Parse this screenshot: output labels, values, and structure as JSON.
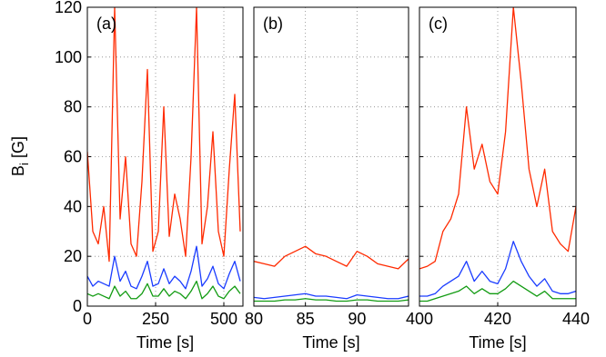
{
  "chart_data": [
    {
      "type": "line",
      "panel_label": "(a)",
      "xlabel": "Time [s]",
      "ylabel": "B",
      "ylabel_sub": "i",
      "ylabel_unit": "[G]",
      "xlim": [
        0,
        570
      ],
      "xticks": [
        0,
        250,
        500
      ],
      "ylim": [
        0,
        120
      ],
      "yticks": [
        0,
        20,
        40,
        60,
        80,
        100,
        120
      ],
      "grid": true,
      "x": [
        0,
        20,
        40,
        60,
        80,
        100,
        120,
        140,
        160,
        180,
        200,
        220,
        240,
        260,
        280,
        300,
        320,
        340,
        360,
        380,
        400,
        420,
        440,
        460,
        480,
        500,
        520,
        540,
        560
      ],
      "series": [
        {
          "color": "#ff2a00",
          "values": [
            62,
            30,
            25,
            40,
            18,
            120,
            35,
            60,
            25,
            20,
            50,
            95,
            22,
            30,
            80,
            28,
            45,
            35,
            20,
            60,
            120,
            25,
            40,
            70,
            30,
            20,
            55,
            85,
            30
          ]
        },
        {
          "color": "#1a3cff",
          "values": [
            12,
            8,
            10,
            9,
            8,
            20,
            10,
            14,
            8,
            7,
            12,
            18,
            8,
            9,
            15,
            9,
            12,
            10,
            7,
            14,
            24,
            8,
            11,
            16,
            9,
            7,
            13,
            18,
            10
          ]
        },
        {
          "color": "#129b12",
          "values": [
            5,
            4,
            5,
            4,
            3,
            8,
            4,
            6,
            3,
            3,
            5,
            9,
            4,
            4,
            7,
            4,
            6,
            5,
            3,
            6,
            10,
            3,
            5,
            8,
            4,
            3,
            6,
            8,
            5
          ]
        }
      ]
    },
    {
      "type": "line",
      "panel_label": "(b)",
      "xlabel": "Time [s]",
      "xlim": [
        80,
        95
      ],
      "xticks": [
        80,
        85,
        90
      ],
      "ylim": [
        0,
        120
      ],
      "grid": true,
      "x": [
        80,
        81,
        82,
        83,
        84,
        85,
        86,
        87,
        88,
        89,
        90,
        91,
        92,
        93,
        94,
        95
      ],
      "series": [
        {
          "color": "#ff2a00",
          "values": [
            18,
            17,
            16,
            20,
            22,
            24,
            21,
            20,
            18,
            16,
            22,
            20,
            17,
            16,
            15,
            19
          ]
        },
        {
          "color": "#1a3cff",
          "values": [
            3.5,
            3,
            3.5,
            4,
            4.5,
            5,
            4,
            4,
            3.5,
            3,
            4.5,
            4,
            3.5,
            3,
            3,
            4
          ]
        },
        {
          "color": "#129b12",
          "values": [
            2,
            2,
            2,
            2.5,
            2.5,
            3,
            2.5,
            2.5,
            2,
            2,
            2.5,
            2.5,
            2,
            2,
            2,
            2.5
          ]
        }
      ]
    },
    {
      "type": "line",
      "panel_label": "(c)",
      "xlabel": "Time [s]",
      "xlim": [
        400,
        440
      ],
      "xticks": [
        400,
        420,
        440
      ],
      "ylim": [
        0,
        120
      ],
      "grid": true,
      "x": [
        400,
        402,
        404,
        406,
        408,
        410,
        412,
        414,
        416,
        418,
        420,
        422,
        424,
        426,
        428,
        430,
        432,
        434,
        436,
        438,
        440
      ],
      "series": [
        {
          "color": "#ff2a00",
          "values": [
            15,
            16,
            18,
            30,
            35,
            45,
            80,
            55,
            65,
            50,
            45,
            70,
            120,
            90,
            55,
            40,
            55,
            30,
            25,
            22,
            40
          ]
        },
        {
          "color": "#1a3cff",
          "values": [
            4,
            4,
            5,
            8,
            10,
            12,
            18,
            10,
            14,
            10,
            9,
            15,
            26,
            18,
            12,
            8,
            11,
            6,
            5,
            5,
            6
          ]
        },
        {
          "color": "#129b12",
          "values": [
            2,
            2,
            3,
            4,
            5,
            6,
            8,
            5,
            7,
            5,
            5,
            7,
            10,
            8,
            6,
            4,
            6,
            3,
            3,
            3,
            3
          ]
        }
      ]
    }
  ]
}
